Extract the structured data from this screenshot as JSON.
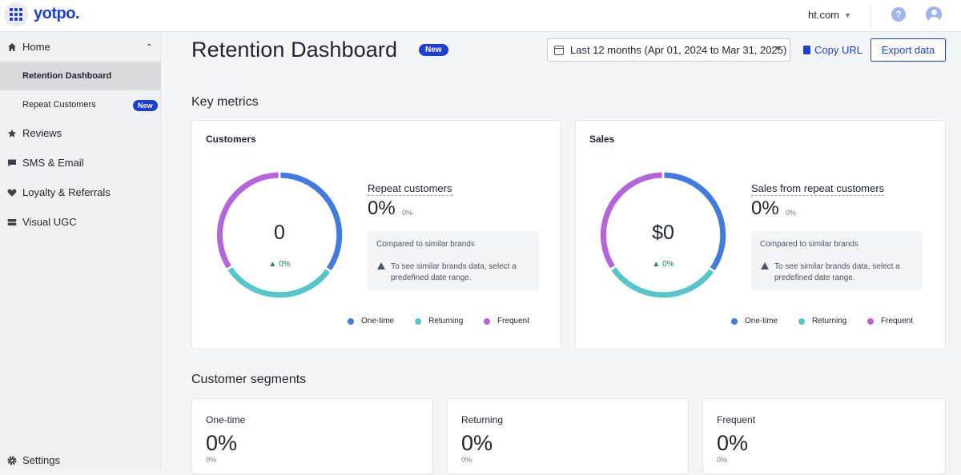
{
  "header": {
    "logo": "yotpo.",
    "store_name": "ht.com",
    "help_symbol": "?"
  },
  "sidebar": {
    "home": {
      "label": "Home",
      "icon": "home-icon"
    },
    "sub_items": [
      {
        "label": "Retention Dashboard",
        "active": true
      },
      {
        "label": "Repeat Customers",
        "badge": "New"
      }
    ],
    "items": [
      {
        "label": "Reviews",
        "icon": "star-icon"
      },
      {
        "label": "SMS & Email",
        "icon": "chat-icon"
      },
      {
        "label": "Loyalty & Referrals",
        "icon": "heart-icon"
      },
      {
        "label": "Visual UGC",
        "icon": "image-icon"
      }
    ],
    "settings": {
      "label": "Settings",
      "icon": "gear-icon"
    }
  },
  "page": {
    "title": "Retention Dashboard",
    "title_badge": "New",
    "date_range": "Last 12 months (Apr 01, 2024 to Mar 31, 2025)",
    "copy_url_label": "Copy URL",
    "export_label": "Export data"
  },
  "key_metrics": {
    "title": "Key metrics",
    "cards": [
      {
        "title": "Customers",
        "donut_value": "0",
        "donut_delta": "0%",
        "metric_label": "Repeat customers",
        "metric_value": "0%",
        "metric_sub": "0%",
        "compare_title": "Compared to similar brands",
        "compare_text": "To see similar brands data, select a predefined date range."
      },
      {
        "title": "Sales",
        "donut_value": "$0",
        "donut_delta": "0%",
        "metric_label": "Sales from repeat customers",
        "metric_value": "0%",
        "metric_sub": "0%",
        "compare_title": "Compared to similar brands",
        "compare_text": "To see similar brands data, select a predefined date range."
      }
    ],
    "legend": [
      {
        "label": "One-time",
        "color": "#3f7be0"
      },
      {
        "label": "Returning",
        "color": "#56c6c9"
      },
      {
        "label": "Frequent",
        "color": "#b565dc"
      }
    ]
  },
  "segments": {
    "title": "Customer segments",
    "cards": [
      {
        "label": "One-time",
        "value": "0%",
        "sub": "0%"
      },
      {
        "label": "Returning",
        "value": "0%",
        "sub": "0%"
      },
      {
        "label": "Frequent",
        "value": "0%",
        "sub": "0%"
      }
    ]
  },
  "colors": {
    "accent": "#1c3fd8",
    "positive": "#1a8a4a"
  }
}
